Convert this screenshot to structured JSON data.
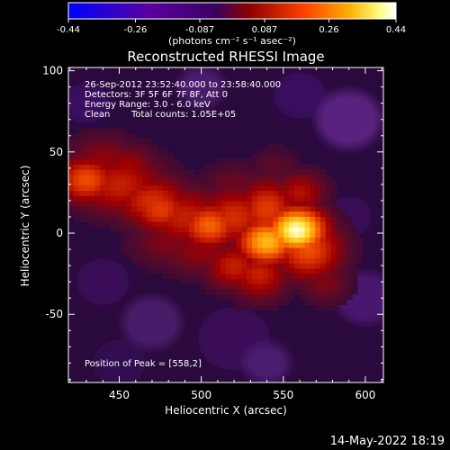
{
  "chart_data": {
    "type": "heatmap",
    "title": "Reconstructed RHESSI Image",
    "xlabel": "Heliocentric X (arcsec)",
    "ylabel": "Heliocentric Y (arcsec)",
    "xlim": [
      419,
      611
    ],
    "ylim": [
      -92,
      102
    ],
    "x_ticks": [
      450,
      500,
      550,
      600
    ],
    "y_ticks": [
      -50,
      0,
      50,
      100
    ],
    "grid": false,
    "colorbar": {
      "range": [
        -0.44,
        0.44
      ],
      "tick_values": [
        -0.44,
        -0.26,
        -0.087,
        0.087,
        0.26,
        0.44
      ],
      "tick_labels": [
        "-0.44",
        "-0.26",
        "-0.087",
        "0.087",
        "0.26",
        "0.44"
      ],
      "unit_label": "(photons cm⁻² s⁻¹ asec⁻²)",
      "colormap": [
        "#0000ff",
        "#5a00a0",
        "#3a0060",
        "#8b0000",
        "#ff4000",
        "#ffb000",
        "#ffff80",
        "#ffffff"
      ]
    },
    "annotations": {
      "time_range": "26-Sep-2012 23:52:40.000 to 23:58:40.000",
      "detectors": "Detectors: 3F 5F 6F 7F 8F, Att 0",
      "energy_range": "Energy Range: 3.0 - 6.0 keV",
      "clean_label": "Clean",
      "total_counts": "Total counts: 1.05E+05",
      "peak_position": "Position of Peak = [558,2]"
    },
    "sources": [
      {
        "x": 558,
        "y": 2,
        "value": 0.44
      },
      {
        "x": 540,
        "y": -5,
        "value": 0.36
      },
      {
        "x": 505,
        "y": 5,
        "value": 0.28
      },
      {
        "x": 475,
        "y": 15,
        "value": 0.24
      },
      {
        "x": 430,
        "y": 33,
        "value": 0.26
      },
      {
        "x": 455,
        "y": 40,
        "value": 0.16
      },
      {
        "x": 520,
        "y": -20,
        "value": 0.2
      }
    ]
  },
  "timestamp": "14-May-2022 18:19"
}
